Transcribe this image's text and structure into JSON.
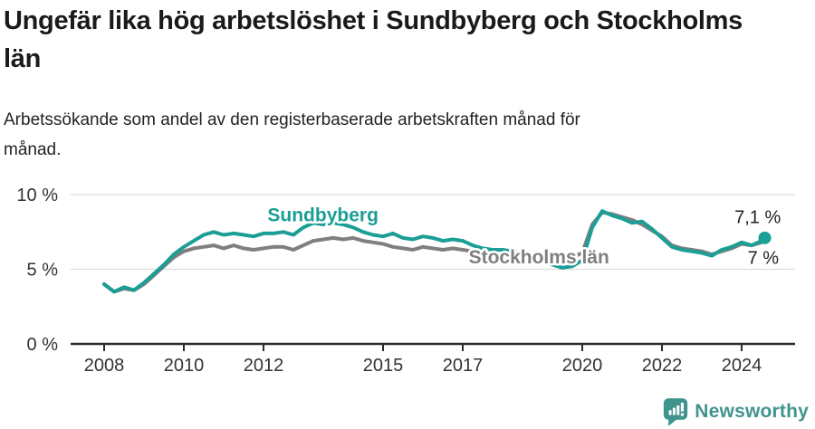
{
  "title": "Ungefär lika hög arbetslöshet i Sundbyberg och Stockholms län",
  "subtitle": "Arbetssökande som andel av den registerbaserade arbetskraften månad för månad.",
  "footer": {
    "brand": "Newsworthy",
    "logo_icon": "newsworthy-bar-chart-bubble-icon"
  },
  "colors": {
    "sundbyberg": "#1a9e96",
    "stockholm": "#7f7f7f",
    "axis": "#2b2b2b",
    "tick_text": "#333333",
    "grid": "#dddddd",
    "annotation": "#222222",
    "brand": "#3f948c",
    "title_text": "#1a1a1a"
  },
  "chart_data": {
    "type": "line",
    "title": "Ungefär lika hög arbetslöshet i Sundbyberg och Stockholms län",
    "subtitle": "Arbetssökande som andel av den registerbaserade arbetskraften månad för månad.",
    "xlabel": "",
    "ylabel": "",
    "xlim": [
      2007.2,
      2025.3
    ],
    "ylim": [
      0,
      10.6
    ],
    "grid": "horizontal",
    "x_ticks": [
      2008,
      2010,
      2012,
      2015,
      2017,
      2020,
      2022,
      2024
    ],
    "y_ticks": [
      {
        "value": 0,
        "label": "0 %"
      },
      {
        "value": 5,
        "label": "5 %"
      },
      {
        "value": 10,
        "label": "10 %"
      }
    ],
    "series": [
      {
        "name": "Stockholms län",
        "color": "#7f7f7f",
        "end_dot": false,
        "end_label": "7 %",
        "end_label_pos": {
          "x": 2024.15,
          "y": 5.35
        },
        "label_pos": {
          "x": 2017.15,
          "y": 5.4
        },
        "x": [
          2008.0,
          2008.25,
          2008.5,
          2008.75,
          2009.0,
          2009.25,
          2009.5,
          2009.75,
          2010.0,
          2010.25,
          2010.5,
          2010.75,
          2011.0,
          2011.25,
          2011.5,
          2011.75,
          2012.0,
          2012.25,
          2012.5,
          2012.75,
          2013.0,
          2013.25,
          2013.5,
          2013.75,
          2014.0,
          2014.25,
          2014.5,
          2014.75,
          2015.0,
          2015.25,
          2015.5,
          2015.75,
          2016.0,
          2016.25,
          2016.5,
          2016.75,
          2017.0,
          2017.25,
          2017.5,
          2017.75,
          2018.0,
          2018.25,
          2018.5,
          2018.75,
          2019.0,
          2019.25,
          2019.5,
          2019.75,
          2020.0,
          2020.25,
          2020.5,
          2020.75,
          2021.0,
          2021.25,
          2021.5,
          2021.75,
          2022.0,
          2022.25,
          2022.5,
          2022.75,
          2023.0,
          2023.25,
          2023.5,
          2023.75,
          2024.0,
          2024.25,
          2024.5,
          2024.58
        ],
        "values": [
          4.0,
          3.5,
          3.7,
          3.6,
          4.0,
          4.6,
          5.2,
          5.8,
          6.2,
          6.4,
          6.5,
          6.6,
          6.4,
          6.6,
          6.4,
          6.3,
          6.4,
          6.5,
          6.5,
          6.3,
          6.6,
          6.9,
          7.0,
          7.1,
          7.0,
          7.1,
          6.9,
          6.8,
          6.7,
          6.5,
          6.4,
          6.3,
          6.5,
          6.4,
          6.3,
          6.4,
          6.3,
          6.2,
          6.1,
          6.0,
          6.0,
          5.9,
          5.8,
          5.8,
          5.7,
          5.7,
          5.6,
          5.8,
          6.1,
          8.0,
          8.8,
          8.7,
          8.5,
          8.3,
          8.0,
          7.6,
          7.2,
          6.6,
          6.4,
          6.3,
          6.2,
          6.0,
          6.2,
          6.4,
          6.7,
          6.6,
          6.8,
          7.0
        ]
      },
      {
        "name": "Sundbyberg",
        "color": "#1a9e96",
        "end_dot": true,
        "end_label": "7,1 %",
        "end_label_pos": {
          "x": 2023.82,
          "y": 8.1
        },
        "label_pos": {
          "x": 2012.1,
          "y": 8.2
        },
        "x": [
          2008.0,
          2008.25,
          2008.5,
          2008.75,
          2009.0,
          2009.25,
          2009.5,
          2009.75,
          2010.0,
          2010.25,
          2010.5,
          2010.75,
          2011.0,
          2011.25,
          2011.5,
          2011.75,
          2012.0,
          2012.25,
          2012.5,
          2012.75,
          2013.0,
          2013.25,
          2013.5,
          2013.75,
          2014.0,
          2014.25,
          2014.5,
          2014.75,
          2015.0,
          2015.25,
          2015.5,
          2015.75,
          2016.0,
          2016.25,
          2016.5,
          2016.75,
          2017.0,
          2017.25,
          2017.5,
          2017.75,
          2018.0,
          2018.25,
          2018.5,
          2018.75,
          2019.0,
          2019.25,
          2019.5,
          2019.75,
          2020.0,
          2020.25,
          2020.5,
          2020.75,
          2021.0,
          2021.25,
          2021.5,
          2021.75,
          2022.0,
          2022.25,
          2022.5,
          2022.75,
          2023.0,
          2023.25,
          2023.5,
          2023.75,
          2024.0,
          2024.25,
          2024.5,
          2024.58
        ],
        "values": [
          4.0,
          3.5,
          3.8,
          3.6,
          4.1,
          4.7,
          5.3,
          6.0,
          6.5,
          6.9,
          7.3,
          7.5,
          7.3,
          7.4,
          7.3,
          7.2,
          7.4,
          7.4,
          7.5,
          7.3,
          7.8,
          8.1,
          8.0,
          8.1,
          8.0,
          7.8,
          7.5,
          7.3,
          7.2,
          7.4,
          7.1,
          7.0,
          7.2,
          7.1,
          6.9,
          7.0,
          6.9,
          6.6,
          6.4,
          6.3,
          6.3,
          6.2,
          6.0,
          5.8,
          5.6,
          5.3,
          5.1,
          5.2,
          5.6,
          7.8,
          8.9,
          8.6,
          8.4,
          8.1,
          8.2,
          7.7,
          7.1,
          6.5,
          6.3,
          6.2,
          6.1,
          5.9,
          6.3,
          6.5,
          6.8,
          6.6,
          6.9,
          7.1
        ]
      }
    ]
  }
}
